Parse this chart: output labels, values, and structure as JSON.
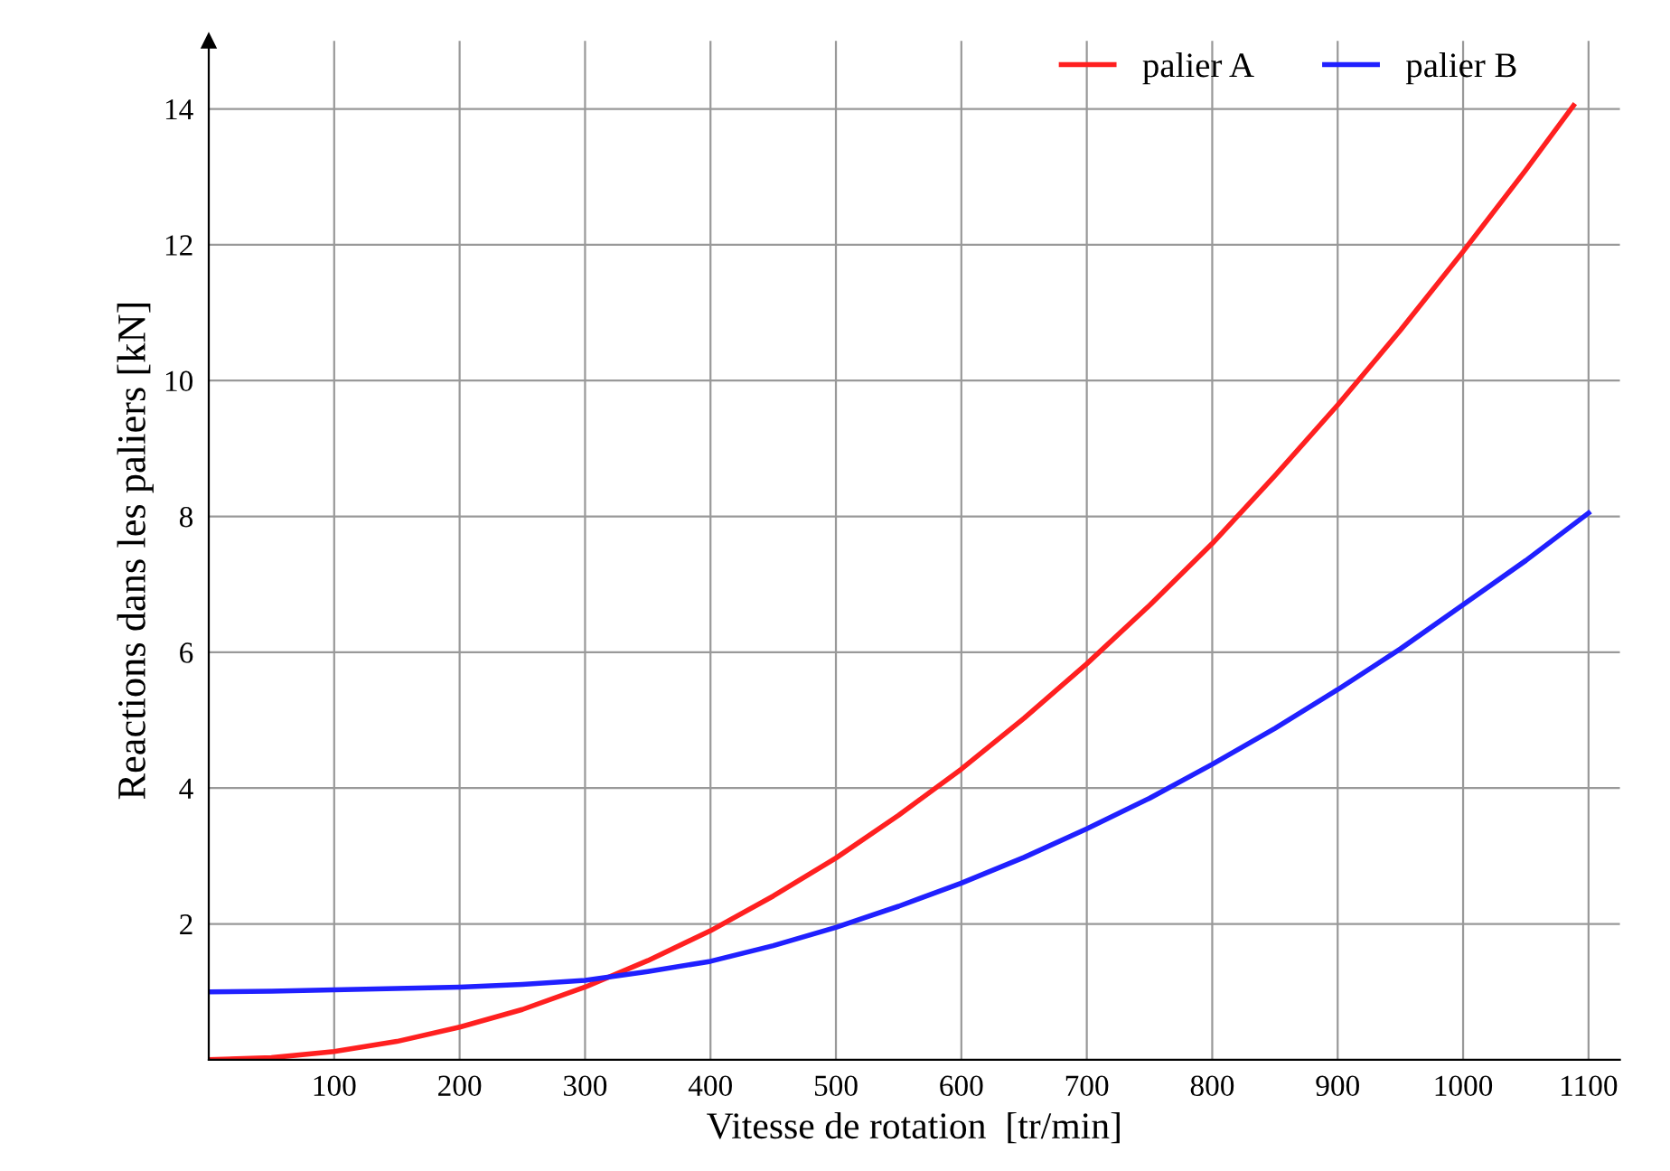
{
  "chart_data": {
    "type": "line",
    "xlabel": "Vitesse de rotation  [tr/min]",
    "ylabel": "Reactions dans les paliers [kN]",
    "series": [
      {
        "name": "palier A",
        "color": "#ff2020",
        "x": [
          0,
          50,
          100,
          150,
          200,
          250,
          300,
          350,
          400,
          450,
          500,
          550,
          600,
          650,
          700,
          750,
          800,
          850,
          900,
          950,
          1000,
          1050,
          1088
        ],
        "values": [
          0,
          0.03,
          0.12,
          0.27,
          0.48,
          0.74,
          1.07,
          1.46,
          1.9,
          2.41,
          2.97,
          3.6,
          4.28,
          5.03,
          5.83,
          6.69,
          7.6,
          8.6,
          9.64,
          10.74,
          11.9,
          13.1,
          14.05
        ]
      },
      {
        "name": "palier B",
        "color": "#2020ff",
        "x": [
          0,
          50,
          100,
          150,
          200,
          250,
          300,
          350,
          400,
          450,
          500,
          550,
          600,
          650,
          700,
          750,
          800,
          850,
          900,
          950,
          1000,
          1050,
          1100
        ],
        "values": [
          1.0,
          1.01,
          1.03,
          1.05,
          1.07,
          1.11,
          1.17,
          1.3,
          1.45,
          1.68,
          1.95,
          2.26,
          2.6,
          2.98,
          3.4,
          3.85,
          4.35,
          4.88,
          5.45,
          6.05,
          6.7,
          7.35,
          8.05
        ]
      }
    ],
    "xlim": [
      0,
      1125
    ],
    "ylim": [
      0,
      15
    ],
    "xticks": [
      100,
      200,
      300,
      400,
      500,
      600,
      700,
      800,
      900,
      1000,
      1100
    ],
    "yticks": [
      2,
      4,
      6,
      8,
      10,
      12,
      14
    ],
    "grid": true,
    "legend": "top right",
    "marker": "none",
    "line_style": "solid"
  }
}
